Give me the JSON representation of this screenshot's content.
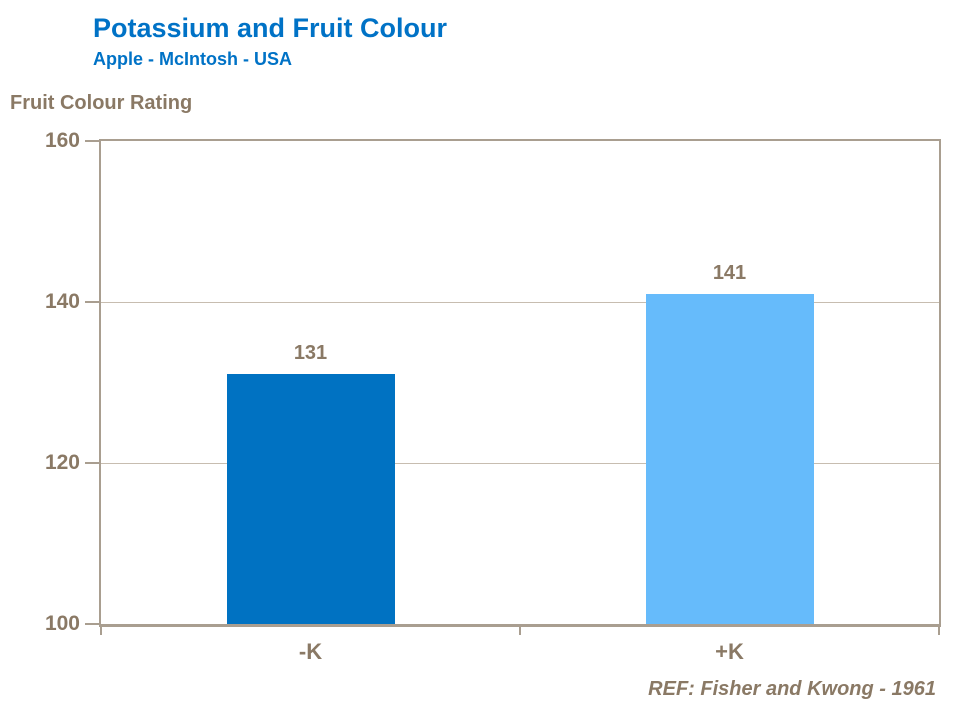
{
  "header": {
    "title": "Potassium and Fruit Colour",
    "subtitle": "Apple - McIntosh - USA"
  },
  "footer": {
    "ref": "REF: Fisher and Kwong - 1961"
  },
  "colors": {
    "title_blue": "#0072C6",
    "axis_text": "#8A7965",
    "axis_line": "#A99E90",
    "gridline": "#C7BDB0",
    "bar_minus_k": "#0072C2",
    "bar_plus_k": "#66BBFB"
  },
  "chart_data": {
    "type": "bar",
    "title": "Potassium and Fruit Colour",
    "subtitle": "Apple - McIntosh - USA",
    "categories": [
      "-K",
      "+K"
    ],
    "values": [
      131,
      141
    ],
    "data_labels": [
      "131",
      "141"
    ],
    "bar_colors": [
      "#0072C2",
      "#66BBFB"
    ],
    "xlabel": "",
    "ylabel": "Fruit Colour Rating",
    "ylim": [
      100,
      160
    ],
    "yticks": [
      100,
      120,
      140,
      160
    ],
    "grid": true,
    "legend": "none",
    "annotation": "REF: Fisher and Kwong - 1961"
  }
}
